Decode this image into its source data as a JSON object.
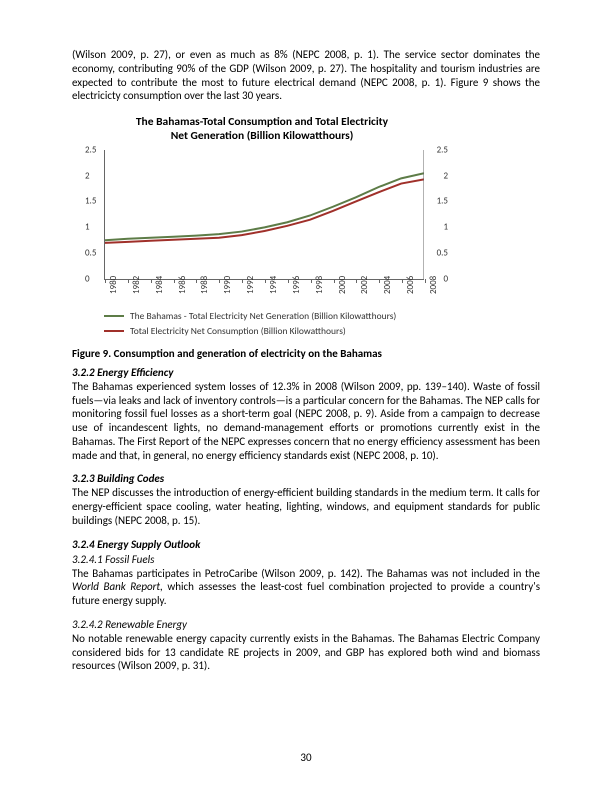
{
  "intro_paragraph": "(Wilson 2009, p. 27), or even as much as 8% (NEPC 2008, p. 1). The service sector dominates the economy, contributing 90% of the GDP (Wilson 2009, p. 27). The hospitality and tourism industries are expected to contribute the most to future electrical demand (NEPC 2008, p. 1). Figure 9 shows the electricicty consumption over the last 30 years.",
  "chart": {
    "title_line1": "The Bahamas-Total Consumption and Total Electricity",
    "title_line2": "Net Generation (Billion Kilowatthours)",
    "y_ticks": [
      0,
      0.5,
      1,
      1.5,
      2,
      2.5
    ],
    "y_max": 2.5,
    "x_labels": [
      "1980",
      "1982",
      "1984",
      "1986",
      "1988",
      "1990",
      "1992",
      "1994",
      "1996",
      "1998",
      "2000",
      "2002",
      "2004",
      "2006",
      "2008"
    ],
    "series": [
      {
        "name": "The Bahamas - Total Electricity Net Generation (Billion Kilowatthours)",
        "color": "#5d7c47",
        "values": [
          0.75,
          0.78,
          0.8,
          0.82,
          0.84,
          0.87,
          0.92,
          1.0,
          1.1,
          1.23,
          1.4,
          1.58,
          1.78,
          1.95,
          2.05
        ]
      },
      {
        "name": "Total Electricity Net Consumption (Billion Kilowatthours)",
        "color": "#a0302a",
        "values": [
          0.7,
          0.72,
          0.74,
          0.76,
          0.78,
          0.8,
          0.85,
          0.93,
          1.03,
          1.15,
          1.32,
          1.5,
          1.68,
          1.85,
          1.93
        ]
      }
    ],
    "line_width": 2
  },
  "figure_caption": "Figure 9. Consumption and generation of electricity on the Bahamas",
  "sections": {
    "s322": {
      "heading": "3.2.2    Energy Efficiency",
      "text": "The Bahamas experienced system losses of 12.3% in 2008 (Wilson 2009, pp. 139–140). Waste of fossil fuels—via leaks and lack of inventory controls—is a particular concern for the Bahamas. The NEP calls for monitoring fossil fuel losses as a short-term goal (NEPC 2008, p. 9). Aside from a campaign to decrease use of incandescent lights, no demand-management efforts or promotions currently exist in the Bahamas. The First Report of the NEPC expresses concern that no energy efficiency assessment has been made and that, in general, no energy efficiency standards exist (NEPC 2008, p. 10)."
    },
    "s323": {
      "heading": "3.2.3    Building Codes",
      "text": "The NEP discusses the introduction of energy-efficient building standards in the medium term. It calls for energy-efficient space cooling, water heating, lighting, windows, and equipment standards for public buildings (NEPC 2008, p. 15)."
    },
    "s324": {
      "heading": "3.2.4    Energy Supply Outlook",
      "sub1_heading": "3.2.4.1    Fossil Fuels",
      "sub1_text_before": "The Bahamas participates in PetroCaribe (Wilson 2009, p. 142). The Bahamas was not included in the ",
      "sub1_italic": "World Bank Report,",
      "sub1_text_after": " which assesses the least-cost fuel combination projected to provide a country's future energy supply.",
      "sub2_heading": "3.2.4.2    Renewable Energy",
      "sub2_text": "No notable renewable energy capacity currently exists in the Bahamas. The Bahamas Electric Company considered bids for 13 candidate RE projects in 2009, and GBP has explored both wind and biomass resources (Wilson 2009, p. 31)."
    }
  },
  "page_number": "30"
}
